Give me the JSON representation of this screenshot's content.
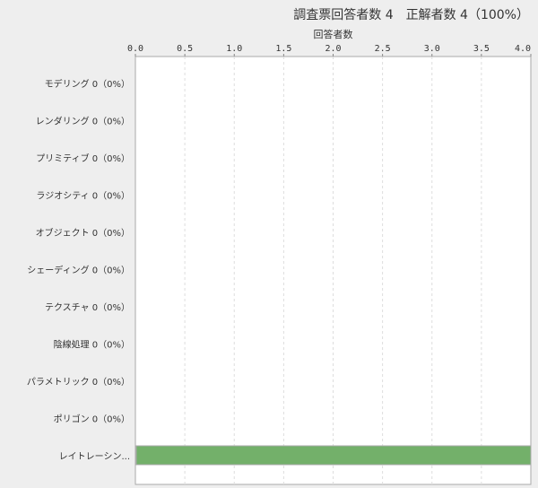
{
  "header": {
    "title": "調査票回答者数 4　正解者数 4（100%）"
  },
  "chart_data": {
    "type": "bar",
    "orientation": "horizontal",
    "title": "調査票回答者数 4　正解者数 4（100%）",
    "xlabel": "回答者数",
    "xlim": [
      0,
      4
    ],
    "xticks": [
      "0.0",
      "0.5",
      "1.0",
      "1.5",
      "2.0",
      "2.5",
      "3.0",
      "3.5",
      "4.0"
    ],
    "grid": true,
    "categories": [
      "モデリング 0（0%）",
      "レンダリング 0（0%）",
      "プリミティブ 0（0%）",
      "ラジオシティ 0（0%）",
      "オブジェクト 0（0%）",
      "シェーディング 0（0%）",
      "テクスチャ 0（0%）",
      "陰線処理 0（0%）",
      "パラメトリック 0（0%）",
      "ポリゴン 0（0%）",
      "レイトレーシン..."
    ],
    "values": [
      0,
      0,
      0,
      0,
      0,
      0,
      0,
      0,
      0,
      0,
      4
    ],
    "bar_color": "#73b06a"
  }
}
